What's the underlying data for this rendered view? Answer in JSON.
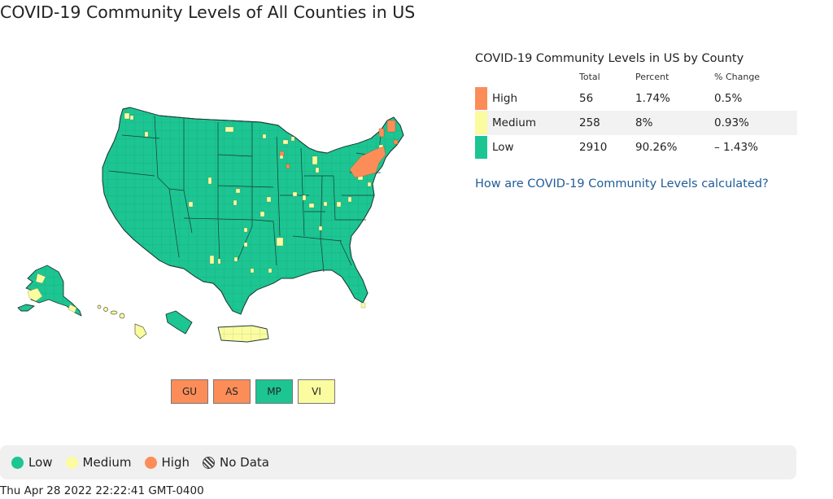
{
  "page": {
    "title": "COVID-19 Community Levels of All Counties in US"
  },
  "colors": {
    "low": "#1cc592",
    "medium": "#fbfba0",
    "high": "#fc8d59",
    "row_shade": "#f2f2f2",
    "link": "#1f5c99"
  },
  "map": {
    "territories": [
      {
        "code": "GU",
        "level": "high"
      },
      {
        "code": "AS",
        "level": "high"
      },
      {
        "code": "MP",
        "level": "low"
      },
      {
        "code": "VI",
        "level": "medium"
      }
    ]
  },
  "summary": {
    "title": "COVID-19 Community Levels in US by County",
    "headers": {
      "total": "Total",
      "percent": "Percent",
      "change": "% Change"
    },
    "rows": [
      {
        "level": "High",
        "total": "56",
        "percent": "1.74%",
        "change": "0.5%",
        "color_key": "high"
      },
      {
        "level": "Medium",
        "total": "258",
        "percent": "8%",
        "change": "0.93%",
        "color_key": "medium"
      },
      {
        "level": "Low",
        "total": "2910",
        "percent": "90.26%",
        "change": "– 1.43%",
        "color_key": "low"
      }
    ],
    "link_text": "How are COVID-19 Community Levels calculated?"
  },
  "legend": {
    "low": "Low",
    "medium": "Medium",
    "high": "High",
    "no_data": "No Data"
  },
  "timestamp": "Thu Apr 28 2022 22:22:41 GMT-0400"
}
